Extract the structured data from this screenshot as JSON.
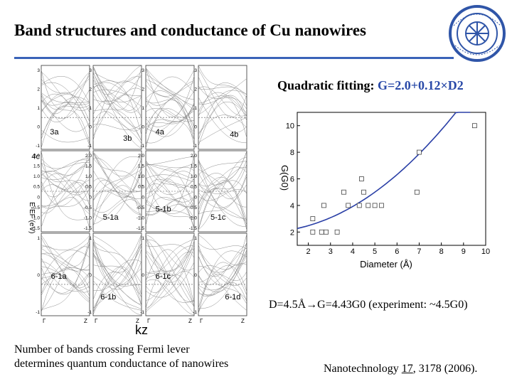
{
  "header": {
    "title": "Band structures and conductance of Cu nanowires"
  },
  "band_panels": {
    "kz_label": "kz",
    "gamma_label": "Γ",
    "z_label": "Z",
    "energy_label": "E-EF (eV)",
    "top_row": {
      "labels": [
        "3a",
        "3b",
        "4a",
        "4b"
      ],
      "ticks": [
        "3",
        "2",
        "1",
        "0",
        "-1"
      ]
    },
    "middle_row": {
      "labels": [
        "4c",
        "5-1a",
        "5-1b",
        "5-1c"
      ],
      "ticks": [
        "2.0",
        "1.5",
        "1.0",
        "0.5",
        "0",
        "-0.5",
        "-1.0",
        "-1.5"
      ]
    },
    "bottom_row": {
      "labels": [
        "6-1a",
        "6-1b",
        "6-1c",
        "6-1d"
      ],
      "ticks": [
        "1",
        "0",
        "-1"
      ]
    }
  },
  "fit": {
    "title_prefix": "Quadratic fitting: ",
    "equation": "G=2.0+0.12×D2",
    "estimate": "D=4.5Å→G=4.43G0 (experiment: ~4.5G0)"
  },
  "chart_data": {
    "type": "scatter",
    "xlabel": "Diameter (Å)",
    "ylabel": "G(G0)",
    "xlim": [
      1.5,
      10
    ],
    "ylim": [
      1,
      11
    ],
    "xticks": [
      2,
      3,
      4,
      5,
      6,
      7,
      8,
      9,
      10
    ],
    "yticks": [
      2,
      4,
      6,
      8,
      10
    ],
    "points": [
      {
        "x": 2.2,
        "y": 2.0
      },
      {
        "x": 2.2,
        "y": 3.0
      },
      {
        "x": 2.6,
        "y": 2.0
      },
      {
        "x": 2.8,
        "y": 2.0
      },
      {
        "x": 2.7,
        "y": 4.0
      },
      {
        "x": 3.3,
        "y": 2.0
      },
      {
        "x": 3.6,
        "y": 5.0
      },
      {
        "x": 3.8,
        "y": 4.0
      },
      {
        "x": 4.3,
        "y": 4.0
      },
      {
        "x": 4.4,
        "y": 6.0
      },
      {
        "x": 4.5,
        "y": 5.0
      },
      {
        "x": 4.7,
        "y": 4.0
      },
      {
        "x": 5.0,
        "y": 4.0
      },
      {
        "x": 5.3,
        "y": 4.0
      },
      {
        "x": 6.9,
        "y": 5.0
      },
      {
        "x": 7.0,
        "y": 8.0
      },
      {
        "x": 9.5,
        "y": 10.0
      }
    ],
    "fit_curve": {
      "a": 2.0,
      "b": 0.12,
      "x_range": [
        1.5,
        9.3
      ],
      "color": "#2a3fa6"
    },
    "grid": false
  },
  "captions": {
    "left_line1": "Number of bands crossing Fermi lever",
    "left_line2": "determines quantum conductance of nanowires",
    "ref_prefix": "Nanotechnology ",
    "ref_volume": "17",
    "ref_suffix": ", 3178 (2006)."
  },
  "colors": {
    "accent_rule": "#3a63b8",
    "logo_blue": "#2f55a8"
  }
}
